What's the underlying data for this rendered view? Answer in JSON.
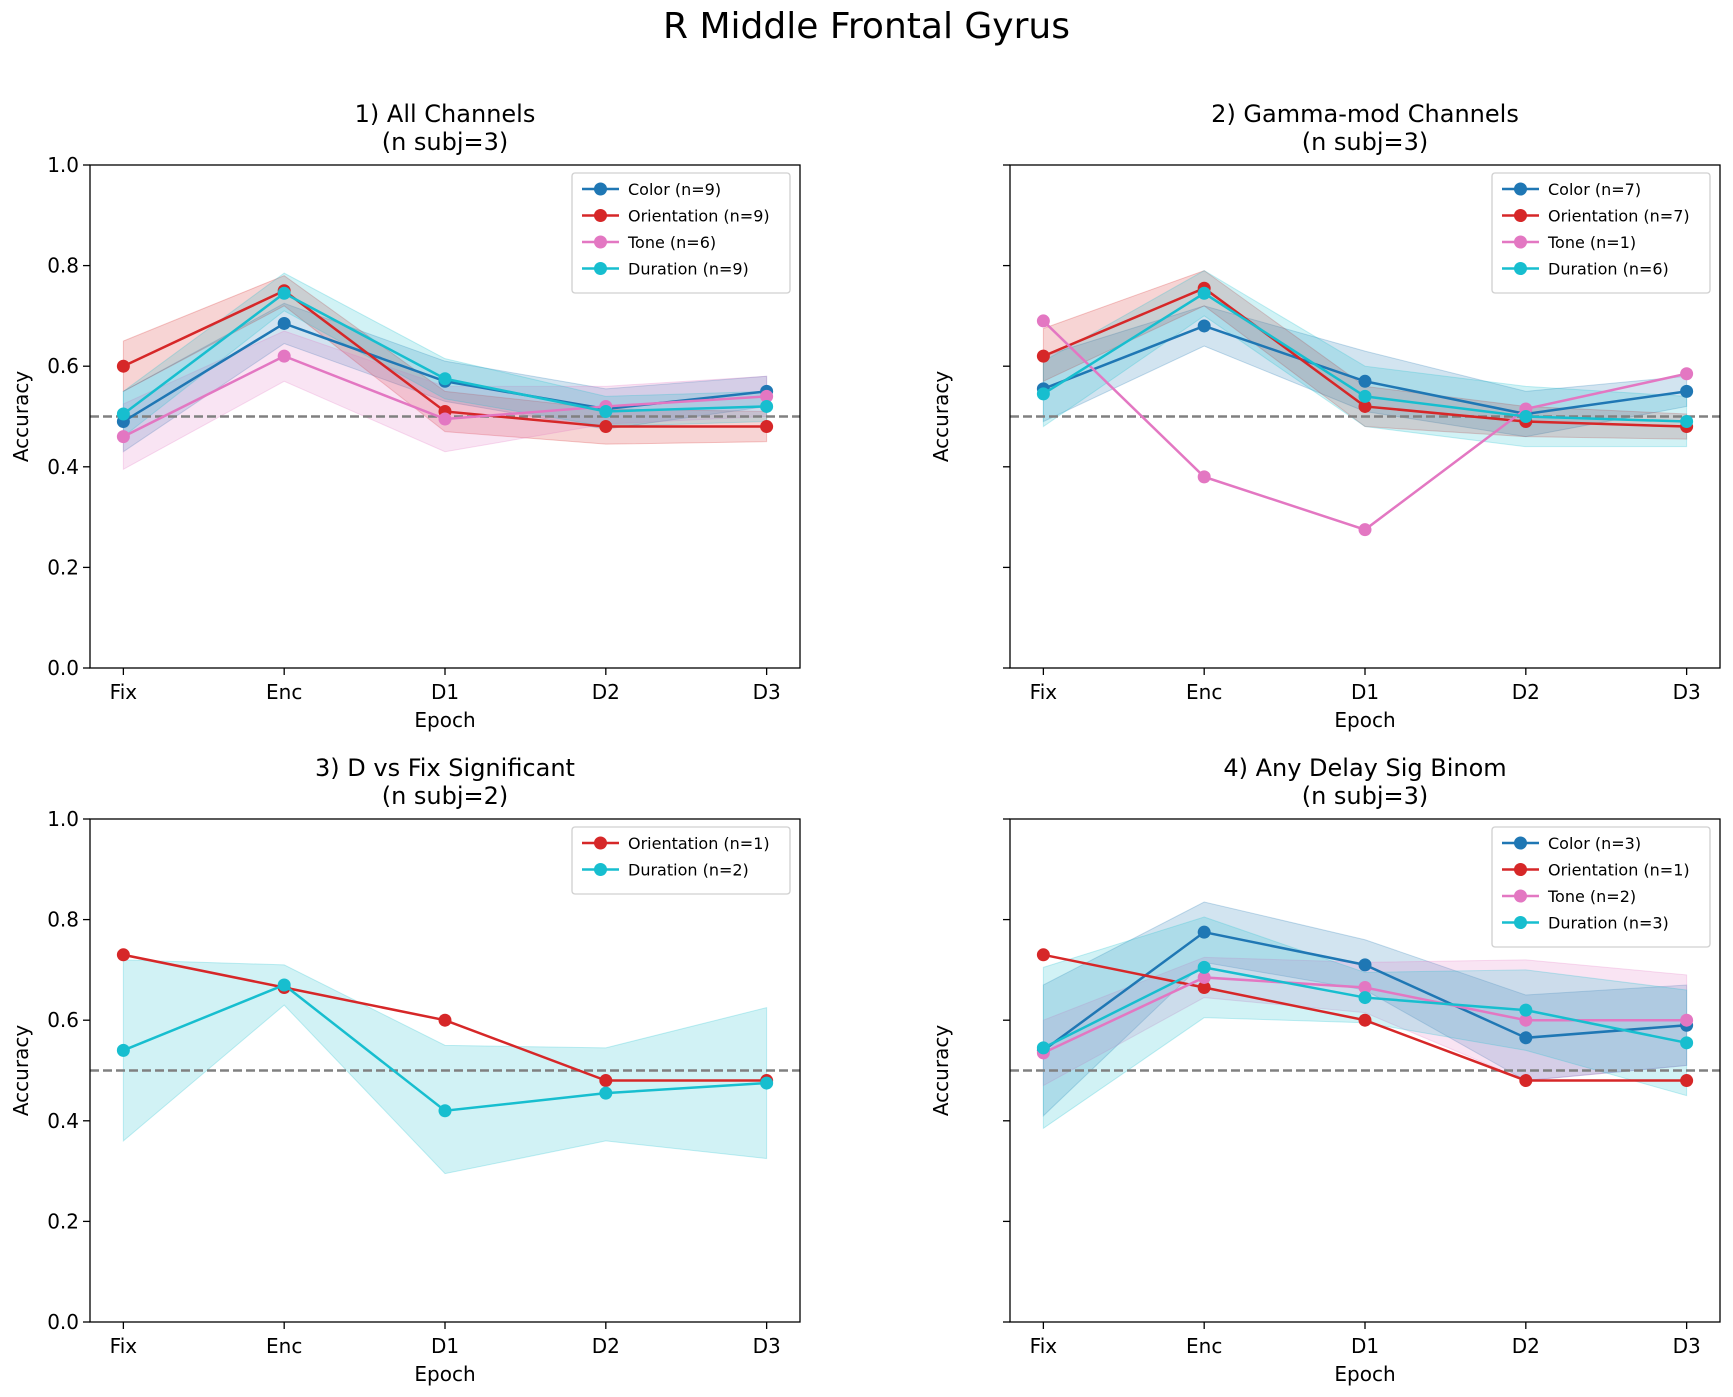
{
  "figure_title": "R Middle Frontal Gyrus",
  "colors": {
    "Color": "#1f77b4",
    "Orientation": "#d62728",
    "Tone": "#e377c2",
    "Duration": "#17becf",
    "chance_line": "#808080"
  },
  "chart_data": [
    {
      "type": "line",
      "title": "1) All Channels\n(n subj=3)",
      "xlabel": "Epoch",
      "ylabel": "Accuracy",
      "categories": [
        "Fix",
        "Enc",
        "D1",
        "D2",
        "D3"
      ],
      "ylim": [
        0.0,
        1.0
      ],
      "yticks": [
        "0.0",
        "0.2",
        "0.4",
        "0.6",
        "0.8",
        "1.0"
      ],
      "show_ytick_labels": true,
      "chance_level": 0.5,
      "legend_position": "top-right",
      "series": [
        {
          "name": "Color (n=9)",
          "key": "Color",
          "values": [
            0.49,
            0.685,
            0.57,
            0.515,
            0.55
          ],
          "lower": [
            0.43,
            0.645,
            0.53,
            0.475,
            0.52
          ],
          "upper": [
            0.55,
            0.725,
            0.61,
            0.555,
            0.58
          ]
        },
        {
          "name": "Orientation (n=9)",
          "key": "Orientation",
          "values": [
            0.6,
            0.75,
            0.51,
            0.48,
            0.48
          ],
          "lower": [
            0.55,
            0.72,
            0.47,
            0.445,
            0.45
          ],
          "upper": [
            0.65,
            0.78,
            0.55,
            0.515,
            0.51
          ]
        },
        {
          "name": "Tone (n=6)",
          "key": "Tone",
          "values": [
            0.46,
            0.62,
            0.495,
            0.52,
            0.54
          ],
          "lower": [
            0.395,
            0.57,
            0.43,
            0.485,
            0.5
          ],
          "upper": [
            0.525,
            0.67,
            0.56,
            0.56,
            0.58
          ]
        },
        {
          "name": "Duration (n=9)",
          "key": "Duration",
          "values": [
            0.505,
            0.745,
            0.575,
            0.51,
            0.52
          ],
          "lower": [
            0.46,
            0.71,
            0.535,
            0.48,
            0.49
          ],
          "upper": [
            0.55,
            0.785,
            0.615,
            0.54,
            0.55
          ]
        }
      ]
    },
    {
      "type": "line",
      "title": "2) Gamma-mod Channels\n(n subj=3)",
      "xlabel": "Epoch",
      "ylabel": "Accuracy",
      "categories": [
        "Fix",
        "Enc",
        "D1",
        "D2",
        "D3"
      ],
      "ylim": [
        0.0,
        1.0
      ],
      "yticks": [
        "0.0",
        "0.2",
        "0.4",
        "0.6",
        "0.8",
        "1.0"
      ],
      "show_ytick_labels": false,
      "chance_level": 0.5,
      "legend_position": "top-right",
      "series": [
        {
          "name": "Color (n=7)",
          "key": "Color",
          "values": [
            0.555,
            0.68,
            0.57,
            0.505,
            0.55
          ],
          "lower": [
            0.49,
            0.64,
            0.51,
            0.46,
            0.52
          ],
          "upper": [
            0.62,
            0.72,
            0.63,
            0.55,
            0.58
          ]
        },
        {
          "name": "Orientation (n=7)",
          "key": "Orientation",
          "values": [
            0.62,
            0.755,
            0.52,
            0.49,
            0.48
          ],
          "lower": [
            0.57,
            0.72,
            0.48,
            0.46,
            0.455
          ],
          "upper": [
            0.675,
            0.79,
            0.56,
            0.52,
            0.505
          ]
        },
        {
          "name": "Tone (n=1)",
          "key": "Tone",
          "values": [
            0.69,
            0.38,
            0.275,
            0.515,
            0.585
          ]
        },
        {
          "name": "Duration (n=6)",
          "key": "Duration",
          "values": [
            0.545,
            0.745,
            0.54,
            0.5,
            0.49
          ],
          "lower": [
            0.48,
            0.7,
            0.48,
            0.44,
            0.44
          ],
          "upper": [
            0.61,
            0.79,
            0.6,
            0.56,
            0.54
          ]
        }
      ]
    },
    {
      "type": "line",
      "title": "3) D vs Fix Significant\n(n subj=2)",
      "xlabel": "Epoch",
      "ylabel": "Accuracy",
      "categories": [
        "Fix",
        "Enc",
        "D1",
        "D2",
        "D3"
      ],
      "ylim": [
        0.0,
        1.0
      ],
      "yticks": [
        "0.0",
        "0.2",
        "0.4",
        "0.6",
        "0.8",
        "1.0"
      ],
      "show_ytick_labels": true,
      "chance_level": 0.5,
      "legend_position": "top-right",
      "series": [
        {
          "name": "Orientation (n=1)",
          "key": "Orientation",
          "values": [
            0.73,
            0.665,
            0.6,
            0.48,
            0.48
          ]
        },
        {
          "name": "Duration (n=2)",
          "key": "Duration",
          "values": [
            0.54,
            0.67,
            0.42,
            0.455,
            0.475
          ],
          "lower": [
            0.36,
            0.63,
            0.295,
            0.36,
            0.325
          ],
          "upper": [
            0.72,
            0.71,
            0.55,
            0.545,
            0.625
          ]
        }
      ]
    },
    {
      "type": "line",
      "title": "4) Any Delay Sig Binom\n(n subj=3)",
      "xlabel": "Epoch",
      "ylabel": "Accuracy",
      "categories": [
        "Fix",
        "Enc",
        "D1",
        "D2",
        "D3"
      ],
      "ylim": [
        0.0,
        1.0
      ],
      "yticks": [
        "0.0",
        "0.2",
        "0.4",
        "0.6",
        "0.8",
        "1.0"
      ],
      "show_ytick_labels": false,
      "chance_level": 0.5,
      "legend_position": "top-right",
      "series": [
        {
          "name": "Color (n=3)",
          "key": "Color",
          "values": [
            0.54,
            0.775,
            0.71,
            0.565,
            0.59
          ],
          "lower": [
            0.41,
            0.715,
            0.66,
            0.48,
            0.51
          ],
          "upper": [
            0.67,
            0.835,
            0.76,
            0.65,
            0.67
          ]
        },
        {
          "name": "Orientation (n=1)",
          "key": "Orientation",
          "values": [
            0.73,
            0.665,
            0.6,
            0.48,
            0.48
          ]
        },
        {
          "name": "Tone (n=2)",
          "key": "Tone",
          "values": [
            0.535,
            0.685,
            0.665,
            0.6,
            0.6
          ],
          "lower": [
            0.47,
            0.645,
            0.615,
            0.48,
            0.51
          ],
          "upper": [
            0.6,
            0.725,
            0.715,
            0.72,
            0.69
          ]
        },
        {
          "name": "Duration (n=3)",
          "key": "Duration",
          "values": [
            0.545,
            0.705,
            0.645,
            0.62,
            0.555
          ],
          "lower": [
            0.385,
            0.605,
            0.595,
            0.54,
            0.45
          ],
          "upper": [
            0.705,
            0.805,
            0.695,
            0.7,
            0.66
          ]
        }
      ]
    }
  ]
}
